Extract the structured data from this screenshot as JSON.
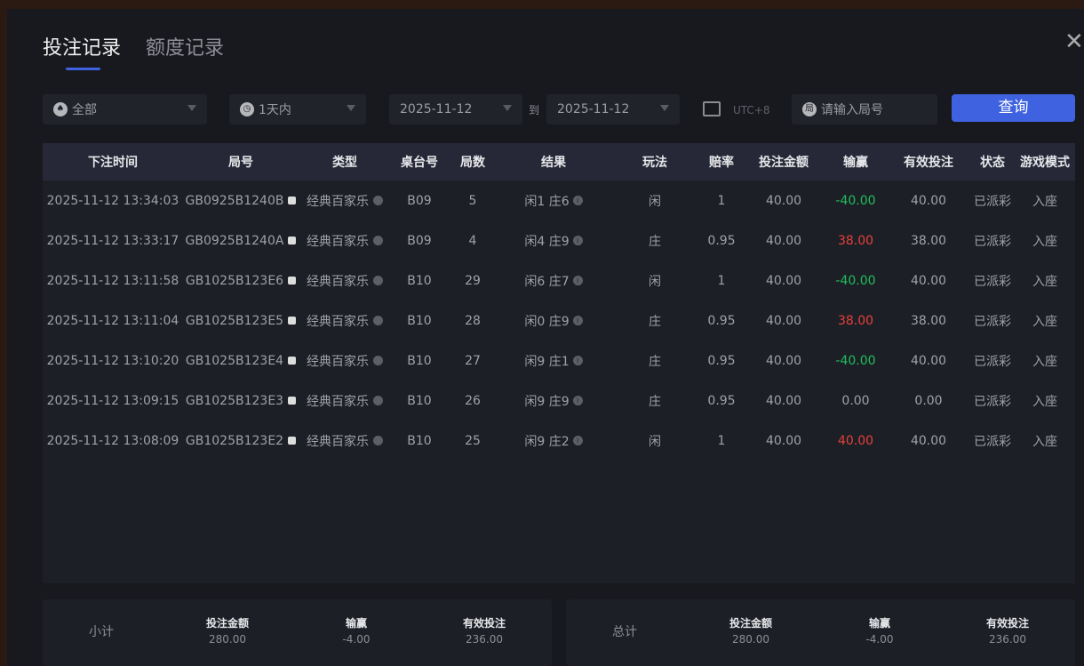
{
  "tabs": [
    {
      "label": "投注记录",
      "active": true
    },
    {
      "label": "额度记录",
      "active": false
    }
  ],
  "filters": {
    "game": "全部",
    "period": "1天内",
    "date_from": "2025-11-12",
    "to_label": "到",
    "date_to": "2025-11-12",
    "timezone": "UTC+8",
    "round_placeholder": "请输入局号",
    "query_label": "查询"
  },
  "colors": {
    "accent": "#3f63e0",
    "loss": "#1fbf5c",
    "win": "#e5403a"
  },
  "table": {
    "headers": [
      "下注时间",
      "局号",
      "类型",
      "桌台号",
      "局数",
      "结果",
      "玩法",
      "赔率",
      "投注金额",
      "输赢",
      "有效投注",
      "状态",
      "游戏模式"
    ],
    "rows": [
      [
        "2025-11-12 13:34:03",
        "GB0925B1240B",
        "经典百家乐",
        "B09",
        "5",
        "闲1 庄6",
        "闲",
        "1",
        "40.00",
        "-40.00",
        "40.00",
        "已派彩",
        "入座",
        "loss"
      ],
      [
        "2025-11-12 13:33:17",
        "GB0925B1240A",
        "经典百家乐",
        "B09",
        "4",
        "闲4 庄9",
        "庄",
        "0.95",
        "40.00",
        "38.00",
        "38.00",
        "已派彩",
        "入座",
        "win"
      ],
      [
        "2025-11-12 13:11:58",
        "GB1025B123E6",
        "经典百家乐",
        "B10",
        "29",
        "闲6 庄7",
        "闲",
        "1",
        "40.00",
        "-40.00",
        "40.00",
        "已派彩",
        "入座",
        "loss"
      ],
      [
        "2025-11-12 13:11:04",
        "GB1025B123E5",
        "经典百家乐",
        "B10",
        "28",
        "闲0 庄9",
        "庄",
        "0.95",
        "40.00",
        "38.00",
        "38.00",
        "已派彩",
        "入座",
        "win"
      ],
      [
        "2025-11-12 13:10:20",
        "GB1025B123E4",
        "经典百家乐",
        "B10",
        "27",
        "闲9 庄1",
        "庄",
        "0.95",
        "40.00",
        "-40.00",
        "40.00",
        "已派彩",
        "入座",
        "loss"
      ],
      [
        "2025-11-12 13:09:15",
        "GB1025B123E3",
        "经典百家乐",
        "B10",
        "26",
        "闲9 庄9",
        "庄",
        "0.95",
        "40.00",
        "0.00",
        "0.00",
        "已派彩",
        "入座",
        "zero"
      ],
      [
        "2025-11-12 13:08:09",
        "GB1025B123E2",
        "经典百家乐",
        "B10",
        "25",
        "闲9 庄2",
        "闲",
        "1",
        "40.00",
        "40.00",
        "40.00",
        "已派彩",
        "入座",
        "win"
      ]
    ]
  },
  "subtotal": {
    "label": "小计",
    "bet_label": "投注金额",
    "bet": "280.00",
    "win_label": "输赢",
    "win": "-4.00",
    "valid_label": "有效投注",
    "valid": "236.00"
  },
  "total": {
    "label": "总计",
    "bet_label": "投注金额",
    "bet": "280.00",
    "win_label": "输赢",
    "win": "-4.00",
    "valid_label": "有效投注",
    "valid": "236.00"
  }
}
